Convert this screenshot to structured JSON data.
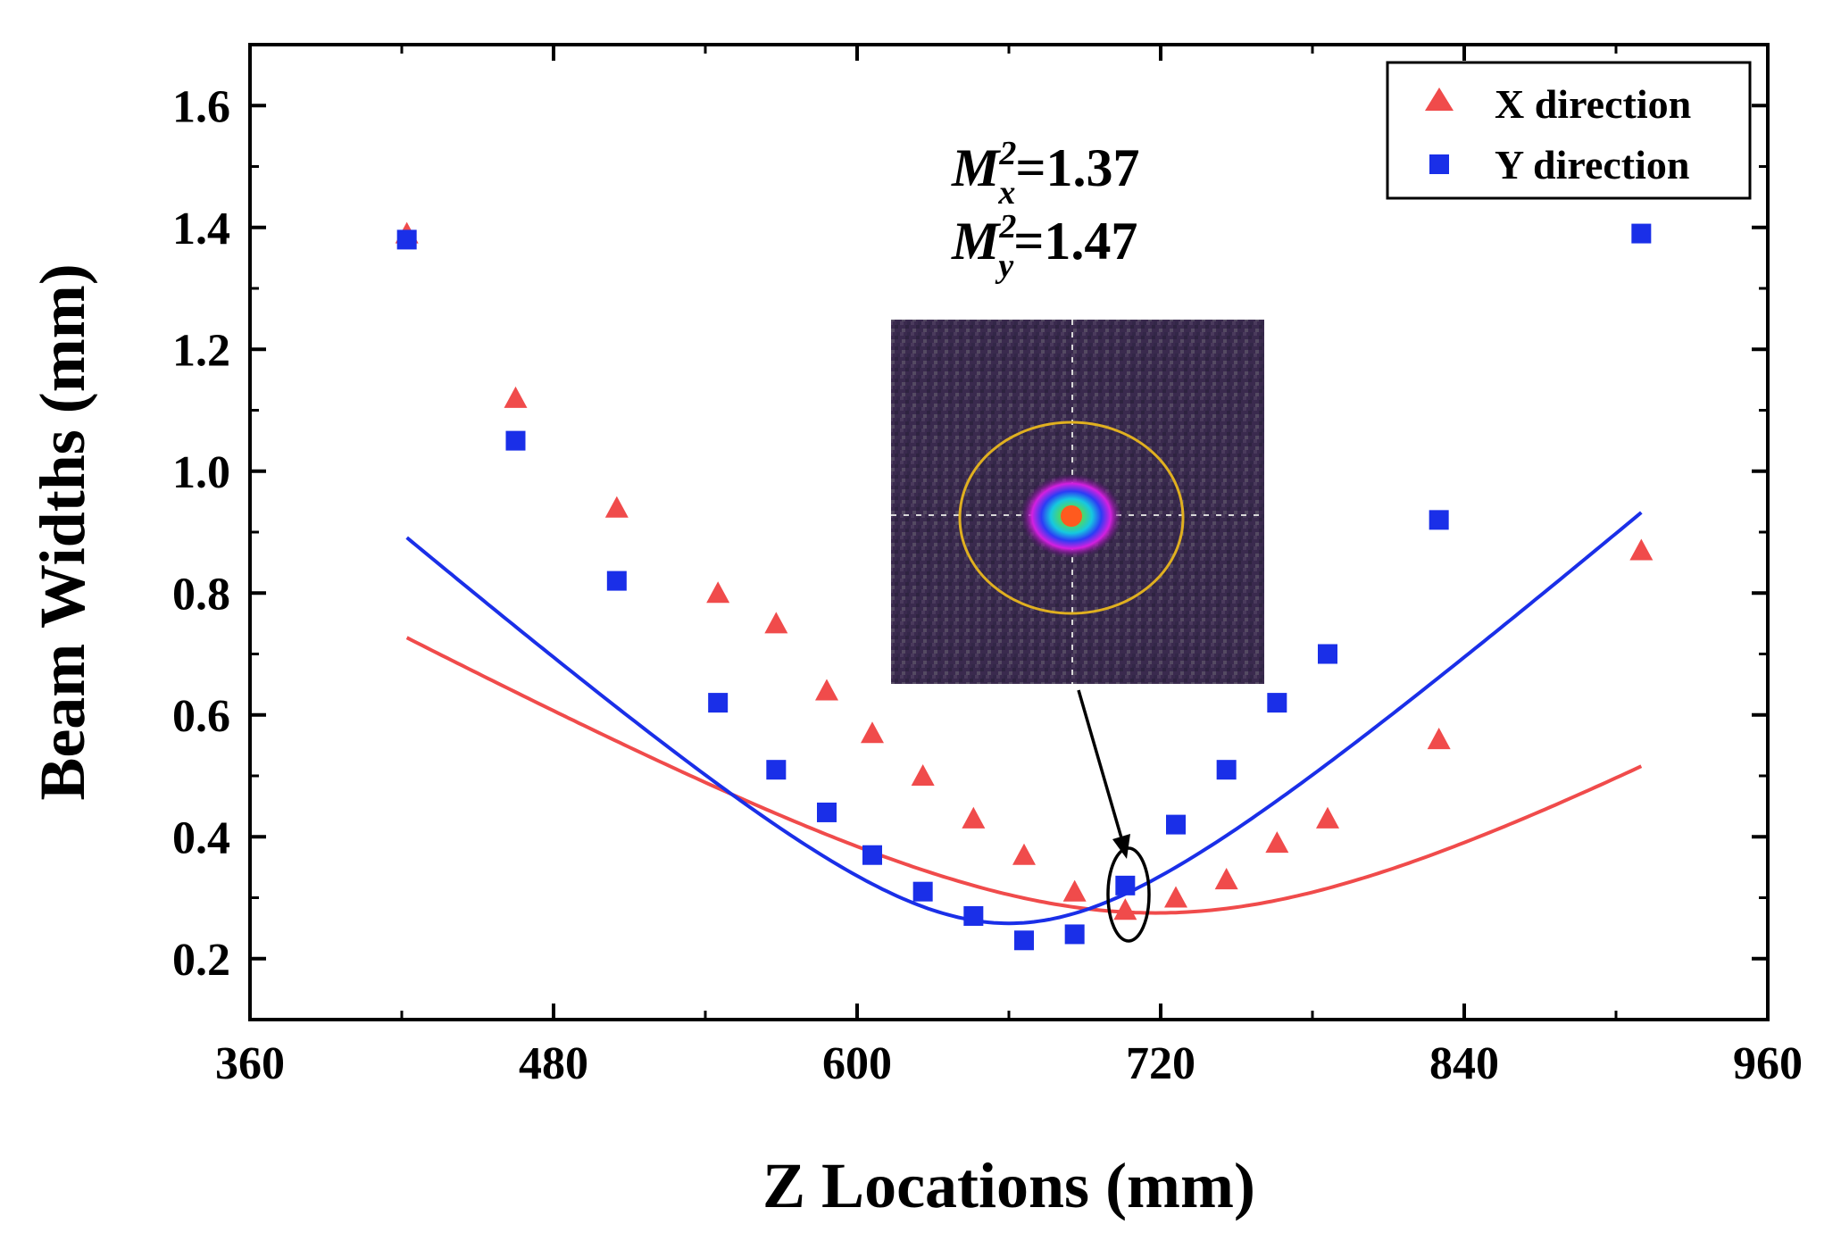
{
  "chart_data": {
    "type": "scatter",
    "xlabel": "Z Locations (mm)",
    "ylabel": "Beam Widths (mm)",
    "xlim": [
      360,
      960
    ],
    "ylim": [
      0.1,
      1.7
    ],
    "xticks": [
      360,
      480,
      600,
      720,
      840,
      960
    ],
    "xtick_labels": [
      "360",
      "480",
      "600",
      "720",
      "840",
      "960"
    ],
    "yticks": [
      0.2,
      0.4,
      0.6,
      0.8,
      1.0,
      1.2,
      1.4,
      1.6
    ],
    "ytick_labels": [
      "0.2",
      "0.4",
      "0.6",
      "0.8",
      "1.0",
      "1.2",
      "1.4",
      "1.6"
    ],
    "legend_position": "top-right",
    "grid": false,
    "series": [
      {
        "name": "X direction",
        "marker": "triangle",
        "color": "#f04b4b",
        "x": [
          422,
          465,
          505,
          545,
          568,
          588,
          606,
          626,
          646,
          666,
          686,
          706,
          726,
          746,
          766,
          786,
          830,
          910
        ],
        "y": [
          1.39,
          1.12,
          0.94,
          0.8,
          0.75,
          0.64,
          0.57,
          0.5,
          0.43,
          0.37,
          0.31,
          0.28,
          0.3,
          0.33,
          0.39,
          0.43,
          0.56,
          0.87
        ],
        "fit": {
          "w0": 0.275,
          "z0": 718,
          "zr": 121
        }
      },
      {
        "name": "Y direction",
        "marker": "square",
        "color": "#1a2fe8",
        "x": [
          422,
          465,
          505,
          545,
          568,
          588,
          606,
          626,
          646,
          666,
          686,
          706,
          726,
          746,
          766,
          786,
          830,
          910
        ],
        "y": [
          1.38,
          1.05,
          0.82,
          0.62,
          0.51,
          0.44,
          0.37,
          0.31,
          0.27,
          0.23,
          0.24,
          0.32,
          0.42,
          0.51,
          0.62,
          0.7,
          0.92,
          1.39
        ],
        "fit": {
          "w0": 0.258,
          "z0": 660,
          "zr": 72
        }
      }
    ],
    "annotations": {
      "m2x_base": "M",
      "m2x_sup": "2",
      "m2x_sub": "x",
      "m2x_value": "=1.37",
      "m2y_base": "M",
      "m2y_sup": "2",
      "m2y_sub": "y",
      "m2y_value": "=1.47"
    },
    "inset": {
      "type": "beam-profile-image",
      "highlight_x": 712,
      "highlight_y": 0.29
    }
  }
}
